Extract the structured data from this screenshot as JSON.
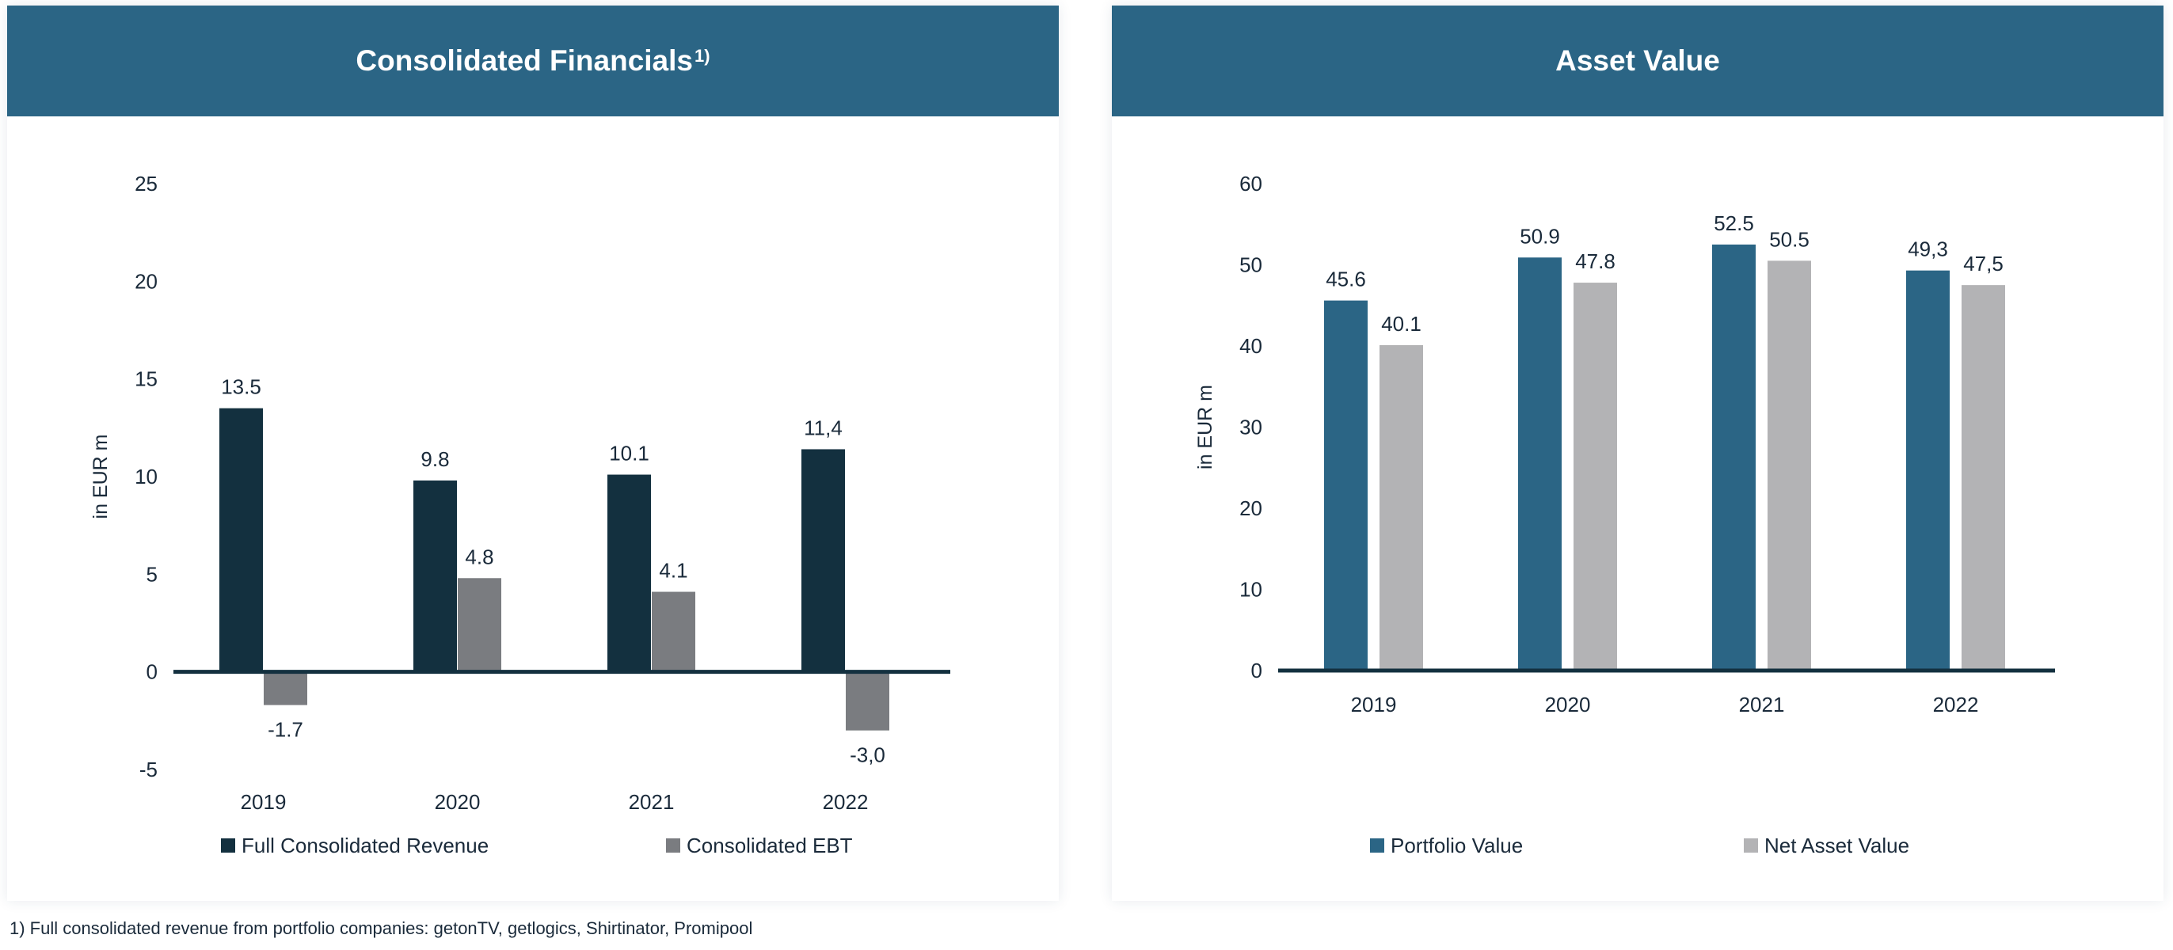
{
  "footnote": "1) Full consolidated revenue from portfolio companies: getonTV, getlogics, Shirtinator, Promipool",
  "chart_data": [
    {
      "type": "bar",
      "title": "Consolidated Financials",
      "title_sup": "1)",
      "ylabel": "in EUR m",
      "xlabel": "",
      "ylim": [
        -5,
        25
      ],
      "yticks": [
        25,
        20,
        15,
        10,
        5,
        0,
        -5
      ],
      "categories": [
        "2019",
        "2020",
        "2021",
        "2022"
      ],
      "series": [
        {
          "name": "Full Consolidated Revenue",
          "color": "#13303f",
          "values": [
            13.5,
            9.8,
            10.1,
            11.4
          ],
          "labels": [
            "13.5",
            "9.8",
            "10.1",
            "11,4"
          ]
        },
        {
          "name": "Consolidated EBT",
          "color": "#7a7c80",
          "values": [
            -1.7,
            4.8,
            4.1,
            -3.0
          ],
          "labels": [
            "-1.7",
            "4.8",
            "4.1",
            "-3,0"
          ]
        }
      ],
      "axis_color": "#13303f",
      "grid": false,
      "legend_position": "bottom"
    },
    {
      "type": "bar",
      "title": "Asset Value",
      "title_sup": "",
      "ylabel": "in EUR m",
      "xlabel": "",
      "ylim": [
        0,
        60
      ],
      "yticks": [
        60,
        50,
        40,
        30,
        20,
        10,
        0
      ],
      "categories": [
        "2019",
        "2020",
        "2021",
        "2022"
      ],
      "series": [
        {
          "name": "Portfolio Value",
          "color": "#2b6585",
          "values": [
            45.6,
            50.9,
            52.5,
            49.3
          ],
          "labels": [
            "45.6",
            "50.9",
            "52.5",
            "49,3"
          ]
        },
        {
          "name": "Net Asset Value",
          "color": "#b3b3b5",
          "values": [
            40.1,
            47.8,
            50.5,
            47.5
          ],
          "labels": [
            "40.1",
            "47.8",
            "50.5",
            "47,5"
          ]
        }
      ],
      "axis_color": "#13303f",
      "grid": false,
      "legend_position": "bottom"
    }
  ]
}
